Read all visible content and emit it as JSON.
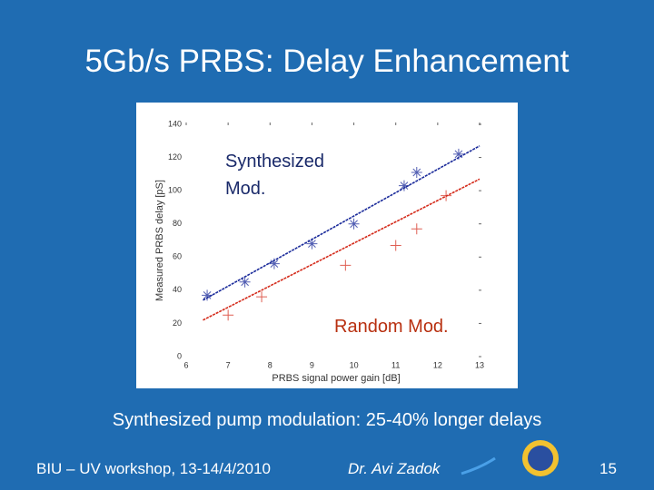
{
  "slide": {
    "title": "5Gb/s PRBS: Delay Enhancement",
    "caption": "Synthesized pump modulation: 25-40% longer delays",
    "footer_left": "BIU – UV workshop, 13-14/4/2010",
    "footer_author": "Dr. Avi Zadok",
    "page_number": "15"
  },
  "chart_data": {
    "type": "scatter",
    "x_label": "PRBS signal power gain [dB]",
    "y_label": "Measured PRBS delay [pS]",
    "xlim": [
      6,
      13
    ],
    "xticks": [
      6,
      7,
      8,
      9,
      10,
      11,
      12,
      13
    ],
    "ylim": [
      0,
      140
    ],
    "yticks": [
      0,
      20,
      40,
      60,
      80,
      100,
      120,
      140
    ],
    "series": [
      {
        "name": "Synthesized Mod.",
        "color": "#1a2a9a",
        "marker": "star",
        "x": [
          6.5,
          7.4,
          8.1,
          9.0,
          10.0,
          11.2,
          11.5,
          12.5
        ],
        "values": [
          37,
          45,
          56,
          68,
          80,
          103,
          111,
          122
        ],
        "fit": {
          "x": [
            6.4,
            13.0
          ],
          "values": [
            34,
            127
          ]
        }
      },
      {
        "name": "Random Mod.",
        "color": "#d42a1a",
        "marker": "plus",
        "x": [
          7.0,
          7.8,
          9.8,
          11.0,
          11.5,
          12.2
        ],
        "values": [
          25,
          36,
          55,
          67,
          77,
          97
        ],
        "fit": {
          "x": [
            6.4,
            13.0
          ],
          "values": [
            22,
            107
          ]
        }
      }
    ]
  }
}
